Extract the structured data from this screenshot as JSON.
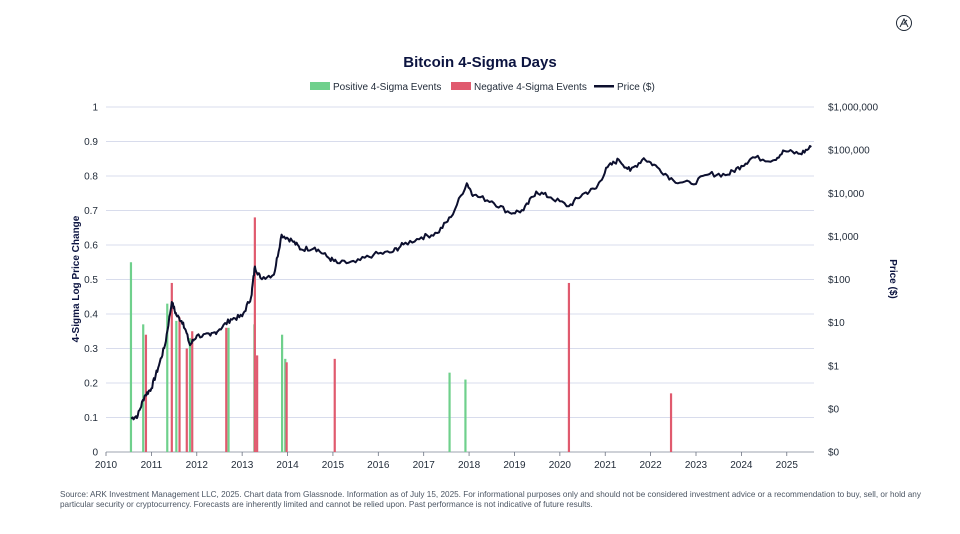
{
  "chart_data": {
    "type": "bar+line",
    "title": "Bitcoin 4-Sigma Days",
    "ylabel_left": "4-Sigma Log Price Change",
    "ylabel_right": "Price ($)",
    "left_ylim": [
      0,
      1
    ],
    "left_ticks": [
      "0",
      "0.1",
      "0.2",
      "0.3",
      "0.4",
      "0.5",
      "0.6",
      "0.7",
      "0.8",
      "0.9",
      "1"
    ],
    "right_scale": "log",
    "right_ylim": [
      0.01,
      1000000
    ],
    "right_ticks": [
      "$0",
      "$0",
      "$1",
      "$10",
      "$100",
      "$1,000",
      "$10,000",
      "$100,000",
      "$1,000,000"
    ],
    "xlim": [
      2010,
      2025.6
    ],
    "x_ticks": [
      "2010",
      "2011",
      "2012",
      "2013",
      "2014",
      "2015",
      "2016",
      "2017",
      "2018",
      "2019",
      "2020",
      "2021",
      "2022",
      "2023",
      "2024",
      "2025"
    ],
    "grid": true,
    "legend_position": "top-center",
    "legend": [
      {
        "label": "Positive 4-Sigma Events",
        "color": "#6fd08c"
      },
      {
        "label": "Negative 4-Sigma Events",
        "color": "#e05a6e"
      },
      {
        "label": "Price ($)",
        "color": "#0c0f2e"
      }
    ],
    "positive_events": [
      {
        "date": 2010.55,
        "value": 0.55
      },
      {
        "date": 2010.82,
        "value": 0.37
      },
      {
        "date": 2011.35,
        "value": 0.43
      },
      {
        "date": 2011.55,
        "value": 0.38
      },
      {
        "date": 2011.85,
        "value": 0.33
      },
      {
        "date": 2012.7,
        "value": 0.36
      },
      {
        "date": 2013.27,
        "value": 0.37
      },
      {
        "date": 2013.88,
        "value": 0.34
      },
      {
        "date": 2013.95,
        "value": 0.27
      },
      {
        "date": 2017.57,
        "value": 0.23
      },
      {
        "date": 2017.92,
        "value": 0.21
      }
    ],
    "negative_events": [
      {
        "date": 2010.88,
        "value": 0.34
      },
      {
        "date": 2011.45,
        "value": 0.49
      },
      {
        "date": 2011.62,
        "value": 0.39
      },
      {
        "date": 2011.78,
        "value": 0.3
      },
      {
        "date": 2011.9,
        "value": 0.35
      },
      {
        "date": 2012.65,
        "value": 0.36
      },
      {
        "date": 2013.28,
        "value": 0.68
      },
      {
        "date": 2013.33,
        "value": 0.28
      },
      {
        "date": 2013.98,
        "value": 0.26
      },
      {
        "date": 2015.04,
        "value": 0.27
      },
      {
        "date": 2020.2,
        "value": 0.49
      },
      {
        "date": 2022.45,
        "value": 0.17
      }
    ],
    "price_series": [
      {
        "date": 2010.55,
        "price": 0.06
      },
      {
        "date": 2010.7,
        "price": 0.07
      },
      {
        "date": 2010.85,
        "price": 0.2
      },
      {
        "date": 2011.0,
        "price": 0.3
      },
      {
        "date": 2011.15,
        "price": 0.9
      },
      {
        "date": 2011.3,
        "price": 3
      },
      {
        "date": 2011.45,
        "price": 30
      },
      {
        "date": 2011.55,
        "price": 15
      },
      {
        "date": 2011.7,
        "price": 10
      },
      {
        "date": 2011.85,
        "price": 3
      },
      {
        "date": 2012.0,
        "price": 5
      },
      {
        "date": 2012.3,
        "price": 5
      },
      {
        "date": 2012.5,
        "price": 7
      },
      {
        "date": 2012.75,
        "price": 12
      },
      {
        "date": 2013.0,
        "price": 14
      },
      {
        "date": 2013.2,
        "price": 40
      },
      {
        "date": 2013.28,
        "price": 200
      },
      {
        "date": 2013.4,
        "price": 110
      },
      {
        "date": 2013.7,
        "price": 130
      },
      {
        "date": 2013.87,
        "price": 1100
      },
      {
        "date": 2014.1,
        "price": 800
      },
      {
        "date": 2014.3,
        "price": 500
      },
      {
        "date": 2014.6,
        "price": 550
      },
      {
        "date": 2014.9,
        "price": 320
      },
      {
        "date": 2015.1,
        "price": 240
      },
      {
        "date": 2015.5,
        "price": 250
      },
      {
        "date": 2015.9,
        "price": 380
      },
      {
        "date": 2016.3,
        "price": 430
      },
      {
        "date": 2016.55,
        "price": 650
      },
      {
        "date": 2016.95,
        "price": 950
      },
      {
        "date": 2017.3,
        "price": 1200
      },
      {
        "date": 2017.6,
        "price": 2800
      },
      {
        "date": 2017.95,
        "price": 17000
      },
      {
        "date": 2018.1,
        "price": 9000
      },
      {
        "date": 2018.5,
        "price": 6500
      },
      {
        "date": 2018.9,
        "price": 3500
      },
      {
        "date": 2019.2,
        "price": 4000
      },
      {
        "date": 2019.48,
        "price": 11000
      },
      {
        "date": 2019.8,
        "price": 8000
      },
      {
        "date": 2020.2,
        "price": 5000
      },
      {
        "date": 2020.5,
        "price": 9500
      },
      {
        "date": 2020.8,
        "price": 13000
      },
      {
        "date": 2021.05,
        "price": 40000
      },
      {
        "date": 2021.3,
        "price": 60000
      },
      {
        "date": 2021.55,
        "price": 33000
      },
      {
        "date": 2021.85,
        "price": 65000
      },
      {
        "date": 2022.15,
        "price": 40000
      },
      {
        "date": 2022.5,
        "price": 20000
      },
      {
        "date": 2022.9,
        "price": 16500
      },
      {
        "date": 2023.3,
        "price": 28000
      },
      {
        "date": 2023.7,
        "price": 27000
      },
      {
        "date": 2024.0,
        "price": 43000
      },
      {
        "date": 2024.25,
        "price": 68000
      },
      {
        "date": 2024.7,
        "price": 58000
      },
      {
        "date": 2024.95,
        "price": 96000
      },
      {
        "date": 2025.3,
        "price": 82000
      },
      {
        "date": 2025.54,
        "price": 118000
      }
    ]
  },
  "footnote": "Source: ARK Investment Management LLC, 2025. Chart data from Glassnode. Information as of July 15, 2025. For informational purposes only and should not be considered investment advice or a recommendation to buy, sell, or hold any particular security or cryptocurrency. Forecasts are inherently limited and cannot be relied upon. Past performance is not indicative of future results."
}
